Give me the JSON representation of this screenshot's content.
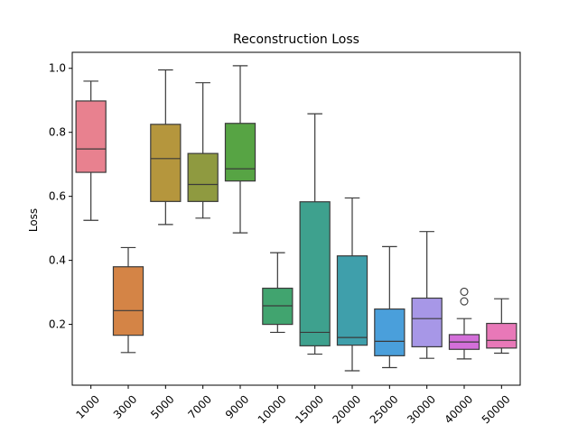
{
  "chart_data": {
    "type": "box",
    "title": "Reconstruction Loss",
    "xlabel": "",
    "ylabel": "Loss",
    "ylim": [
      0.01,
      1.05
    ],
    "yticks": [
      "0.2",
      "0.4",
      "0.6",
      "0.8",
      "1.0"
    ],
    "ytick_values": [
      0.2,
      0.4,
      0.6,
      0.8,
      1.0
    ],
    "grid": false,
    "categories": [
      "1000",
      "3000",
      "5000",
      "7000",
      "9000",
      "10000",
      "15000",
      "20000",
      "25000",
      "30000",
      "40000",
      "50000"
    ],
    "boxes": [
      {
        "min": 0.525,
        "q1": 0.675,
        "median": 0.748,
        "q3": 0.898,
        "max": 0.96,
        "outliers": [],
        "color": "#e8818f"
      },
      {
        "min": 0.112,
        "q1": 0.166,
        "median": 0.243,
        "q3": 0.38,
        "max": 0.44,
        "outliers": [],
        "color": "#d48446"
      },
      {
        "min": 0.512,
        "q1": 0.584,
        "median": 0.718,
        "q3": 0.825,
        "max": 0.995,
        "outliers": [],
        "color": "#b5963d"
      },
      {
        "min": 0.532,
        "q1": 0.584,
        "median": 0.637,
        "q3": 0.734,
        "max": 0.955,
        "outliers": [],
        "color": "#8f9a40"
      },
      {
        "min": 0.486,
        "q1": 0.648,
        "median": 0.686,
        "q3": 0.828,
        "max": 1.008,
        "outliers": [],
        "color": "#57a444"
      },
      {
        "min": 0.175,
        "q1": 0.2,
        "median": 0.258,
        "q3": 0.313,
        "max": 0.424,
        "outliers": [],
        "color": "#41a46f"
      },
      {
        "min": 0.107,
        "q1": 0.133,
        "median": 0.175,
        "q3": 0.583,
        "max": 0.858,
        "outliers": [],
        "color": "#3ea18e"
      },
      {
        "min": 0.055,
        "q1": 0.135,
        "median": 0.159,
        "q3": 0.414,
        "max": 0.595,
        "outliers": [],
        "color": "#3f9fab"
      },
      {
        "min": 0.065,
        "q1": 0.102,
        "median": 0.147,
        "q3": 0.248,
        "max": 0.443,
        "outliers": [],
        "color": "#4a9fdb"
      },
      {
        "min": 0.094,
        "q1": 0.13,
        "median": 0.218,
        "q3": 0.282,
        "max": 0.49,
        "outliers": [],
        "color": "#a797e7"
      },
      {
        "min": 0.092,
        "q1": 0.122,
        "median": 0.145,
        "q3": 0.168,
        "max": 0.218,
        "outliers": [
          0.272,
          0.302
        ],
        "color": "#d36fd9"
      },
      {
        "min": 0.11,
        "q1": 0.126,
        "median": 0.15,
        "q3": 0.203,
        "max": 0.28,
        "outliers": [],
        "color": "#e878b8"
      }
    ]
  }
}
